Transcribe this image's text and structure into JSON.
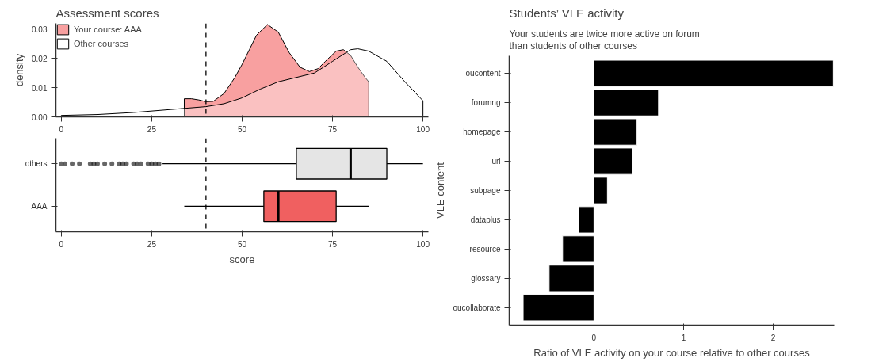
{
  "chart_data": [
    {
      "type": "area",
      "title": "Assessment scores",
      "ylabel": "density",
      "legend": "top left",
      "grid": false,
      "series": [
        {
          "name": "Your course: AAA",
          "color": "#f8a0a0",
          "x": [
            34,
            36,
            38,
            40,
            42,
            45,
            48,
            50,
            52,
            54,
            57,
            60,
            63,
            66,
            68.6,
            71,
            73,
            76,
            78,
            80,
            82,
            84,
            85
          ],
          "values": [
            0.0062,
            0.0062,
            0.0058,
            0.0052,
            0.0053,
            0.008,
            0.0135,
            0.018,
            0.023,
            0.028,
            0.0316,
            0.029,
            0.022,
            0.017,
            0.0155,
            0.0165,
            0.019,
            0.0225,
            0.023,
            0.021,
            0.017,
            0.0135,
            0.012
          ]
        },
        {
          "name": "Other courses",
          "color": "#ffffff",
          "x": [
            0,
            10,
            20,
            30,
            35,
            40,
            45,
            50,
            55,
            60,
            65,
            70,
            75,
            80,
            82,
            85,
            90,
            95,
            100
          ],
          "values": [
            0.0005,
            0.0008,
            0.0015,
            0.0025,
            0.003,
            0.0035,
            0.0045,
            0.0065,
            0.0095,
            0.012,
            0.0135,
            0.015,
            0.019,
            0.023,
            0.0233,
            0.0225,
            0.019,
            0.012,
            0.0055
          ]
        }
      ],
      "xlim": [
        -1.5,
        101.5
      ],
      "xticks": [
        0,
        25,
        50,
        75,
        100
      ],
      "ylim": [
        0,
        0.032
      ],
      "yticks": [
        {
          "value": 0,
          "label": "0.00"
        },
        0.01,
        0.02,
        0.03
      ],
      "ref_lines": [
        {
          "axis": "x",
          "value": 40,
          "line_style": "dashed",
          "color": "#000000"
        }
      ]
    },
    {
      "type": "box",
      "orientation": "horizontal",
      "xlabel": "score",
      "grid": false,
      "categories": [
        "others",
        "AAA"
      ],
      "colors": [
        "#e5e5e5",
        "#f06060"
      ],
      "boxes": [
        {
          "low": 28,
          "q1": 65,
          "median": 80,
          "q3": 90,
          "high": 100,
          "outliers": [
            0,
            1,
            3,
            5,
            8,
            9,
            10,
            12,
            14,
            16,
            17,
            18,
            20,
            21,
            22,
            24,
            25,
            26,
            27
          ]
        },
        {
          "low": 34,
          "q1": 56,
          "median": 60,
          "q3": 76,
          "high": 85
        }
      ],
      "xlim": [
        -1.5,
        101.5
      ],
      "xticks": [
        0,
        25,
        50,
        75,
        100
      ],
      "ref_lines": [
        {
          "axis": "x",
          "value": 40,
          "line_style": "dashed",
          "color": "#000000"
        }
      ]
    },
    {
      "type": "bar",
      "orientation": "horizontal",
      "title": "Students’ VLE activity",
      "subtitle": "Your students are twice more active on forum\nthan students of other courses",
      "xlabel": "Ratio of VLE activity on your course relative to other courses",
      "ylabel": "VLE content",
      "grid": false,
      "categories": [
        "oucontent",
        "forumng",
        "homepage",
        "url",
        "subpage",
        "dataplus",
        "resource",
        "glossary",
        "oucollaborate"
      ],
      "values": [
        2.67,
        0.72,
        0.48,
        0.43,
        0.15,
        -0.17,
        -0.35,
        -0.5,
        -0.79
      ],
      "color": "#000000",
      "xlim": [
        -0.945,
        2.68
      ],
      "xticks": [
        0,
        1,
        2
      ]
    }
  ]
}
